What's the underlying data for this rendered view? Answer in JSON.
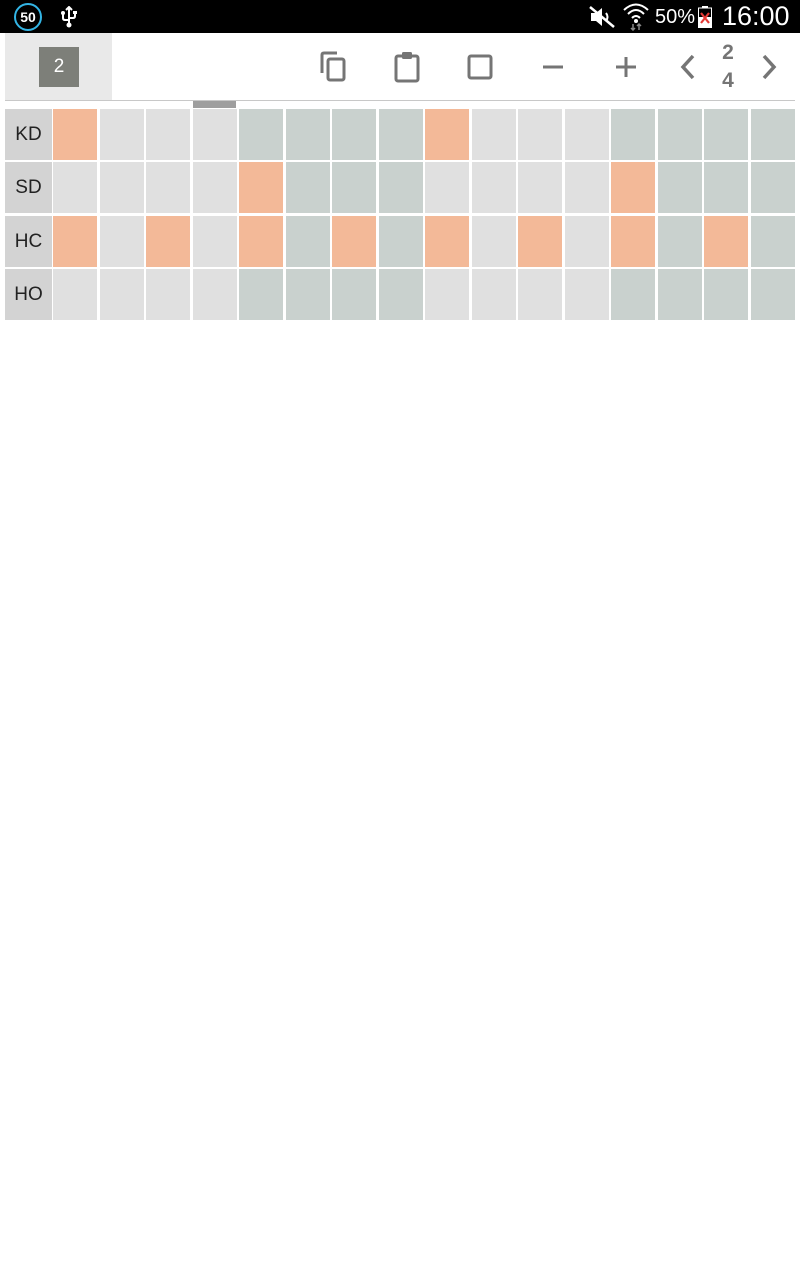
{
  "status_bar": {
    "badge": "50",
    "battery_percent": "50%",
    "clock": "16:00",
    "icons": [
      "usb-icon",
      "mute-icon",
      "wifi-icon",
      "battery-icon"
    ]
  },
  "toolbar": {
    "pattern_number": "2",
    "page_current": "2",
    "page_total": "4",
    "buttons": [
      "copy-icon",
      "paste-icon",
      "clear-icon",
      "minus-icon",
      "plus-icon",
      "chevron-left-icon",
      "chevron-right-icon"
    ]
  },
  "colors": {
    "on": "#f3b998",
    "off_light": "#e0e0e0",
    "off_dark": "#c9d1ce",
    "label_bg": "#d3d3d3",
    "accent_badge": "#7d7f79"
  },
  "sequencer": {
    "steps": 16,
    "group_size": 4,
    "rows": [
      {
        "label": "KD",
        "active": [
          0,
          8
        ]
      },
      {
        "label": "SD",
        "active": [
          4,
          12
        ]
      },
      {
        "label": "HC",
        "active": [
          0,
          2,
          4,
          6,
          8,
          10,
          12,
          14
        ]
      },
      {
        "label": "HO",
        "active": []
      }
    ]
  }
}
